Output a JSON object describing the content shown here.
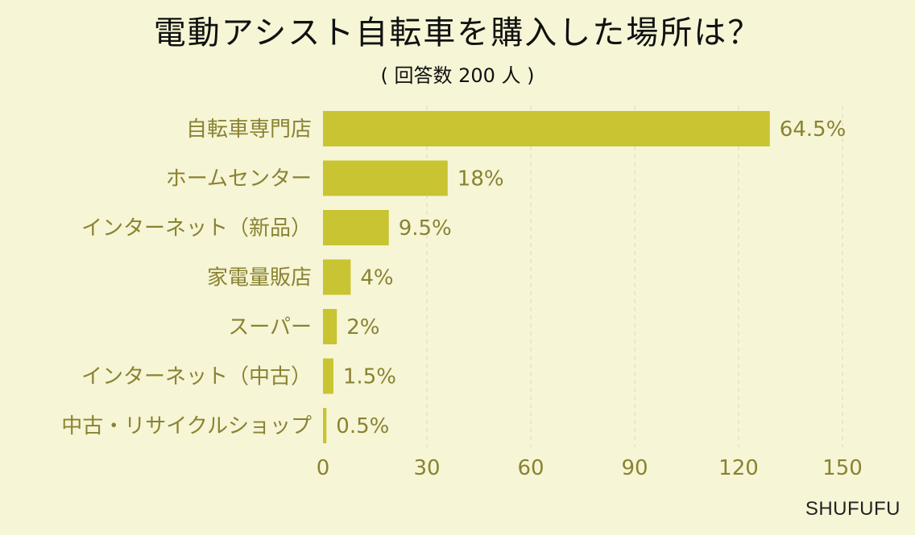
{
  "title": "電動アシスト自転車を購入した場所は？",
  "subtitle": "( 回答数 200 人 )",
  "brand": "SHUFUFU",
  "colors": {
    "background": "#f6f6d6",
    "bar": "#c9c431",
    "label_text": "#8a8232",
    "axis_text": "#8a8232",
    "grid": "#d9d8bd"
  },
  "chart_data": {
    "type": "bar",
    "orientation": "horizontal",
    "categories": [
      "自転車専門店",
      "ホームセンター",
      "インターネット（新品）",
      "家電量販店",
      "スーパー",
      "インターネット（中古）",
      "中古・リサイクルショップ"
    ],
    "values": [
      129,
      36,
      19,
      8,
      4,
      3,
      1
    ],
    "value_labels": [
      "64.5%",
      "18%",
      "9.5%",
      "4%",
      "2%",
      "1.5%",
      "0.5%"
    ],
    "xlim": [
      0,
      150
    ],
    "xticks": [
      0,
      30,
      60,
      90,
      120,
      150
    ],
    "grid": true
  }
}
